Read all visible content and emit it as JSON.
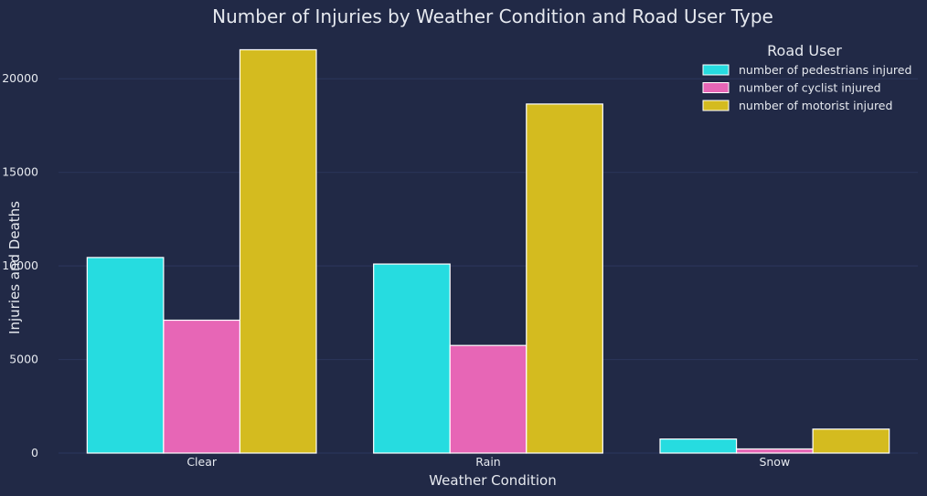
{
  "colors": {
    "background": "#212946",
    "grid": "#2A3459",
    "text": "#e6e9ef",
    "bar_edge": "#ffffff"
  },
  "chart_data": {
    "type": "bar",
    "title": "Number of Injuries by Weather Condition and Road User Type",
    "xlabel": "Weather Condition",
    "ylabel": "Injuries and Deaths",
    "categories": [
      "Clear",
      "Rain",
      "Snow"
    ],
    "ylim": [
      0,
      22500
    ],
    "yticks": [
      0,
      5000,
      10000,
      15000,
      20000
    ],
    "grid": "horizontal",
    "legend": {
      "title": "Road User",
      "placement": "top-right"
    },
    "series": [
      {
        "name": "number of pedestrians injured",
        "color": "#26DCE0",
        "values": [
          10450,
          10100,
          750
        ]
      },
      {
        "name": "number of cyclist injured",
        "color": "#E766B6",
        "values": [
          7100,
          5750,
          220
        ]
      },
      {
        "name": "number of motorist injured",
        "color": "#D4BB1F",
        "values": [
          21550,
          18650,
          1280
        ]
      }
    ]
  }
}
